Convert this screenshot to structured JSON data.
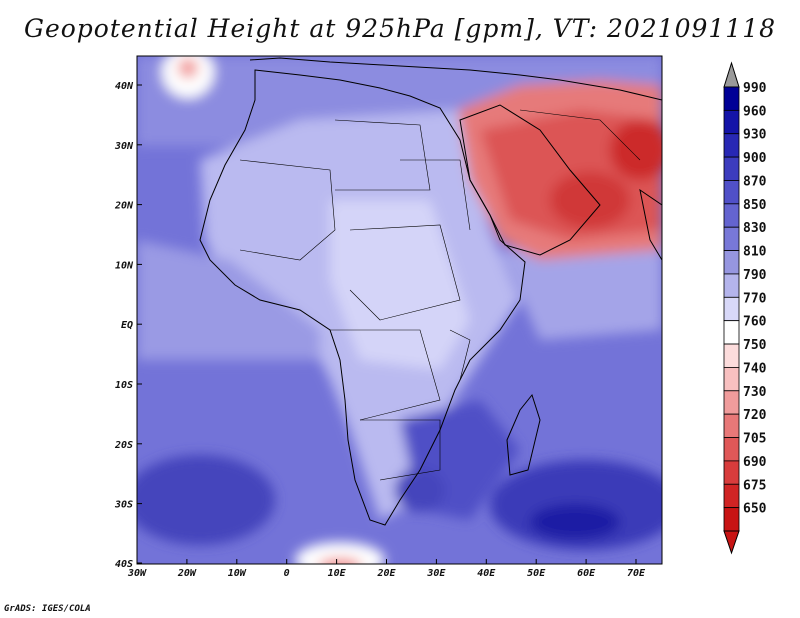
{
  "title": "Geopotential Height at 925hPa [gpm], VT: 2021091118",
  "credit": "GrADS: IGES/COLA",
  "map": {
    "lat_labels": [
      "40N",
      "30N",
      "20N",
      "10N",
      "EQ",
      "10S",
      "20S",
      "30S",
      "40S"
    ],
    "lon_labels": [
      "30W",
      "20W",
      "10W",
      "0",
      "10E",
      "20E",
      "30E",
      "40E",
      "50E",
      "60E",
      "70E"
    ]
  },
  "colorbar": {
    "levels": [
      "990",
      "960",
      "930",
      "900",
      "870",
      "850",
      "830",
      "810",
      "790",
      "770",
      "760",
      "750",
      "740",
      "730",
      "720",
      "705",
      "690",
      "675",
      "650"
    ],
    "colors": [
      "#000096",
      "#1414a8",
      "#2828b4",
      "#3c3cbe",
      "#5050c8",
      "#6464d0",
      "#7878d8",
      "#9696e0",
      "#b4b4ec",
      "#d8d8f8",
      "#ffffff",
      "#fcdcdc",
      "#f8c0c0",
      "#f09c9c",
      "#e87878",
      "#e05858",
      "#d83c3c",
      "#d02424",
      "#c81414"
    ]
  },
  "colors": {
    "ocean_background": "#6d6dd6",
    "land_light": "#b8b8ee",
    "high_region": "#e06565",
    "low_pressure_white": "#ffffff"
  }
}
